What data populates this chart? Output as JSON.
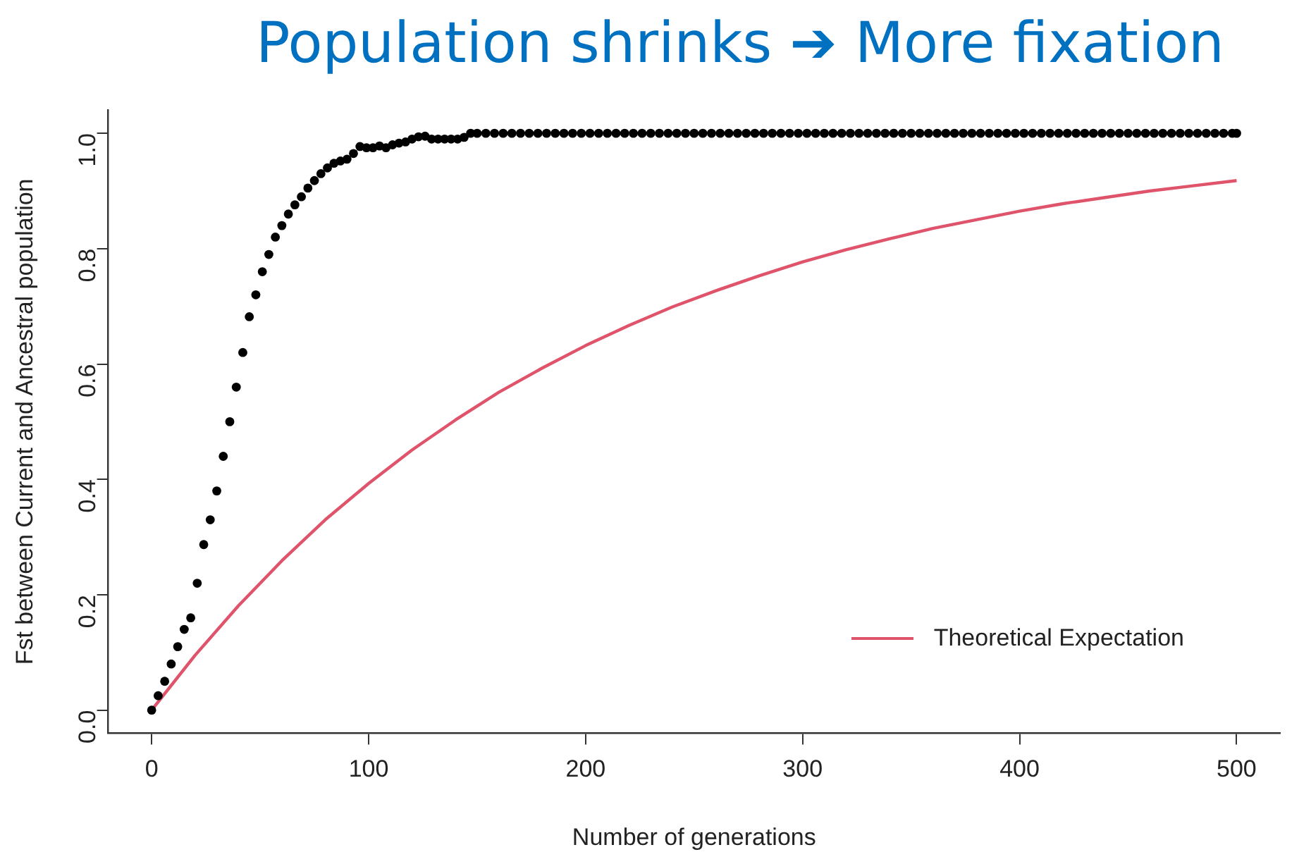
{
  "chart_data": {
    "type": "scatter",
    "title": "Population shrinks ➔ More fixation",
    "xlabel": "Number of generations",
    "ylabel": "Fst between Current and Ancestral population",
    "xlim": [
      -20,
      520
    ],
    "xticks": [
      0,
      100,
      200,
      300,
      400,
      500
    ],
    "ylim": [
      -0.04,
      1.04
    ],
    "yticks": [
      {
        "value": 0,
        "label": "0.0"
      },
      0.2,
      0.4,
      0.6,
      0.8,
      {
        "value": 1,
        "label": "1.0"
      }
    ],
    "grid": false,
    "legend": "bottom right",
    "series": [
      {
        "color": "#000000",
        "marker": "circle",
        "x": [
          0,
          3,
          6,
          9,
          12,
          15,
          18,
          21,
          24,
          27,
          30,
          33,
          36,
          39,
          42,
          45,
          48,
          51,
          54,
          57,
          60,
          63,
          66,
          69,
          72,
          75,
          78,
          81,
          84,
          87,
          90,
          93,
          96,
          99,
          102,
          105,
          108,
          111,
          114,
          117,
          120,
          123,
          126,
          129,
          132,
          135,
          138,
          141,
          144,
          147,
          150,
          154,
          158,
          162,
          166,
          170,
          174,
          178,
          182,
          186,
          190,
          194,
          198,
          202,
          206,
          210,
          214,
          218,
          222,
          226,
          230,
          234,
          238,
          242,
          246,
          250,
          254,
          258,
          262,
          266,
          270,
          274,
          278,
          282,
          286,
          290,
          294,
          298,
          302,
          306,
          310,
          314,
          318,
          322,
          326,
          330,
          334,
          338,
          342,
          346,
          350,
          354,
          358,
          362,
          366,
          370,
          374,
          378,
          382,
          386,
          390,
          394,
          398,
          402,
          406,
          410,
          414,
          418,
          422,
          426,
          430,
          434,
          438,
          442,
          446,
          450,
          454,
          458,
          462,
          466,
          470,
          474,
          478,
          482,
          486,
          490,
          494,
          498,
          500
        ],
        "values": [
          0,
          0.025,
          0.05,
          0.08,
          0.11,
          0.14,
          0.16,
          0.22,
          0.287,
          0.33,
          0.38,
          0.44,
          0.5,
          0.56,
          0.62,
          0.682,
          0.72,
          0.76,
          0.79,
          0.82,
          0.84,
          0.86,
          0.876,
          0.89,
          0.905,
          0.918,
          0.93,
          0.94,
          0.948,
          0.952,
          0.955,
          0.965,
          0.977,
          0.975,
          0.975,
          0.978,
          0.975,
          0.98,
          0.983,
          0.985,
          0.99,
          0.994,
          0.995,
          0.99,
          0.99,
          0.99,
          0.99,
          0.99,
          0.993,
          1,
          1,
          1,
          1,
          1,
          1,
          1,
          1,
          1,
          1,
          1,
          1,
          1,
          1,
          1,
          1,
          1,
          1,
          1,
          1,
          1,
          1,
          1,
          1,
          1,
          1,
          1,
          1,
          1,
          1,
          1,
          1,
          1,
          1,
          1,
          1,
          1,
          1,
          1,
          1,
          1,
          1,
          1,
          1,
          1,
          1,
          1,
          1,
          1,
          1,
          1,
          1,
          1,
          1,
          1,
          1,
          1,
          1,
          1,
          1,
          1,
          1,
          1,
          1,
          1,
          1,
          1,
          1,
          1,
          1,
          1,
          1,
          1,
          1,
          1,
          1,
          1,
          1,
          1,
          1,
          1,
          1,
          1,
          1,
          1,
          1,
          1,
          1,
          1,
          1
        ]
      },
      {
        "type": "line",
        "name": "Theoretical Expectation",
        "color": "#df536b",
        "marker": "none",
        "line_style": "solid",
        "x": [
          0,
          20,
          40,
          60,
          80,
          100,
          120,
          140,
          160,
          180,
          200,
          220,
          240,
          260,
          280,
          300,
          320,
          340,
          360,
          380,
          400,
          420,
          440,
          460,
          480,
          500
        ],
        "values": [
          0,
          0.095,
          0.181,
          0.259,
          0.33,
          0.393,
          0.451,
          0.503,
          0.551,
          0.593,
          0.632,
          0.667,
          0.699,
          0.727,
          0.753,
          0.777,
          0.798,
          0.817,
          0.835,
          0.85,
          0.865,
          0.878,
          0.889,
          0.9,
          0.909,
          0.918
        ]
      }
    ]
  }
}
